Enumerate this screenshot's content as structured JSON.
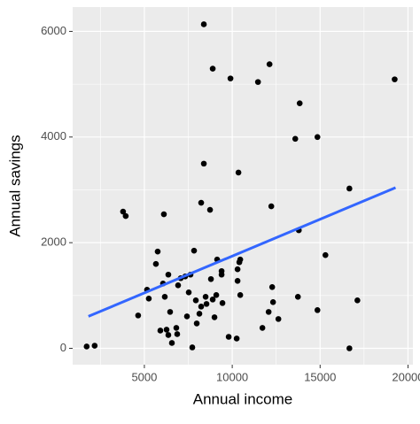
{
  "chart_data": {
    "type": "scatter",
    "x_label": "Annual income",
    "y_label": "Annual savings",
    "xlim": [
      920,
      20280
    ],
    "ylim": [
      -310,
      6460
    ],
    "xticks": [
      5000,
      10000,
      15000,
      20000
    ],
    "yticks": [
      0,
      2000,
      4000,
      6000
    ],
    "xminor": [
      2500,
      7500,
      12500,
      17500
    ],
    "yminor": [
      1000,
      3000,
      5000
    ],
    "grid": true,
    "color": "#000000",
    "series": [
      {
        "x": [
          1717,
          2172,
          3788,
          3939,
          4646,
          5152,
          5253,
          5657,
          5758,
          5909,
          6111,
          6061,
          6162,
          6263,
          6364,
          6364,
          6465,
          6566,
          6818,
          6869,
          6919,
          7071,
          7323,
          7424,
          7525,
          7626,
          7727,
          7828,
          7929,
          7980,
          8131,
          8232,
          8232,
          8384,
          8384,
          8485,
          8535,
          8737,
          8788,
          8889,
          8889,
          8990,
          9091,
          9141,
          9394,
          9394,
          9444,
          9798,
          9899,
          10253,
          10354,
          10303,
          10303,
          10404,
          10455,
          10455,
          11465,
          11717,
          12071,
          12121,
          12222,
          12273,
          12323,
          12626,
          13586,
          13737,
          13788,
          13838,
          14848,
          14848,
          15303,
          16667,
          16667,
          17121,
          19242
        ],
        "values": [
          34,
          50,
          2588,
          2504,
          622,
          1109,
          941,
          1597,
          1832,
          336,
          2538,
          1227,
          975,
          353,
          1395,
          252,
          689,
          101,
          387,
          269,
          1193,
          1328,
          1361,
          605,
          1059,
          1395,
          17,
          1849,
          908,
          471,
          655,
          790,
          2756,
          6134,
          3496,
          975,
          840,
          2622,
          1311,
          5294,
          924,
          588,
          1008,
          1681,
          1462,
          1395,
          857,
          218,
          5109,
          185,
          3328,
          1496,
          1277,
          1630,
          1681,
          1008,
          5042,
          387,
          689,
          5378,
          2689,
          1160,
          874,
          555,
          3966,
          975,
          2235,
          4639,
          4000,
          723,
          1765,
          3025,
          0,
          908,
          5092
        ]
      }
    ],
    "fit": {
      "color": "#3366ff",
      "x": [
        1818,
        19293
      ],
      "values": [
        605,
        3042
      ]
    }
  }
}
